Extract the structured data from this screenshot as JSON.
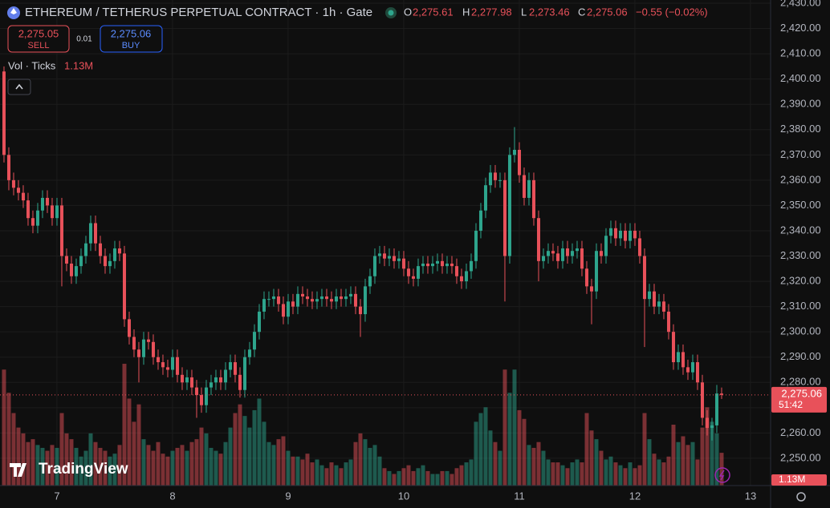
{
  "header": {
    "title": "ETHEREUM / TETHERUS PERPETUAL CONTRACT · 1h · Gate",
    "o": "O",
    "o_value": "2,275.61",
    "h": "H",
    "h_value": "2,277.98",
    "l": "L",
    "l_value": "2,273.46",
    "c": "C",
    "c_value": "2,275.06",
    "change": "−0.55 (−0.02%)",
    "sell_price": "2,275.05",
    "sell": "SELL",
    "spread": "0.01",
    "buy_price": "2,275.06",
    "buy": "BUY",
    "volume_legend": "Vol · Ticks",
    "volume_legend_value": "1.13M",
    "logo": "TradingView"
  },
  "price_tag": {
    "price": "2,275.06",
    "countdown": "51:42"
  },
  "volume_tag": "1.13M",
  "chart_data": {
    "type": "candlestick",
    "up_color": "#2ea58d",
    "down_color": "#e8515a",
    "grid": true,
    "x": [
      -11,
      -10,
      -9,
      -8,
      -7,
      -6,
      -5,
      -4,
      -3,
      -2,
      -1,
      0,
      1,
      2,
      3,
      4,
      5,
      6,
      7,
      8,
      9,
      10,
      11,
      12,
      13,
      14,
      15,
      16,
      17,
      18,
      19,
      20,
      21,
      22,
      23,
      24,
      25,
      26,
      27,
      28,
      29,
      30,
      31,
      32,
      33,
      34,
      35,
      36,
      37,
      38,
      39,
      40,
      41,
      42,
      43,
      44,
      45,
      46,
      47,
      48,
      49,
      50,
      51,
      52,
      53,
      54,
      55,
      56,
      57,
      58,
      59,
      60,
      61,
      62,
      63,
      64,
      65,
      66,
      67,
      68,
      69,
      70,
      71,
      72,
      73,
      74,
      75,
      76,
      77,
      78,
      79,
      80,
      81,
      82,
      83,
      84,
      85,
      86,
      87,
      88,
      89,
      90,
      91,
      92,
      93,
      94,
      95,
      96,
      97,
      98,
      99,
      100,
      101,
      102,
      103,
      104,
      105,
      106,
      107,
      108,
      109,
      110,
      111,
      112,
      113,
      114,
      115,
      116,
      117,
      118,
      119,
      120,
      121,
      122,
      123,
      124,
      125,
      126,
      127,
      128,
      129,
      130,
      131,
      132,
      133,
      134,
      135,
      136,
      137,
      138
    ],
    "open": [
      2403,
      2370,
      2360,
      2357,
      2355,
      2352,
      2345,
      2342,
      2348,
      2353,
      2350,
      2345,
      2350,
      2330,
      2327,
      2322,
      2326,
      2330,
      2335,
      2343,
      2335,
      2330,
      2326,
      2328,
      2333,
      2331,
      2305,
      2298,
      2293,
      2290,
      2297,
      2296,
      2290,
      2288,
      2286,
      2285,
      2290,
      2283,
      2280,
      2282,
      2278,
      2275,
      2271,
      2278,
      2280,
      2282,
      2280,
      2285,
      2288,
      2283,
      2277,
      2290,
      2293,
      2300,
      2308,
      2313,
      2313,
      2314,
      2311,
      2306,
      2312,
      2310,
      2315,
      2314,
      2313,
      2312,
      2313,
      2314,
      2313,
      2312,
      2314,
      2313,
      2314,
      2315,
      2310,
      2307,
      2318,
      2322,
      2330,
      2331,
      2329,
      2330,
      2328,
      2329,
      2325,
      2322,
      2321,
      2326,
      2327,
      2326,
      2327,
      2328,
      2326,
      2327,
      2326,
      2322,
      2320,
      2324,
      2328,
      2340,
      2348,
      2358,
      2363,
      2360,
      2360,
      2330,
      2370,
      2372,
      2362,
      2353,
      2360,
      2345,
      2328,
      2330,
      2332,
      2331,
      2328,
      2333,
      2330,
      2332,
      2333,
      2325,
      2318,
      2316,
      2332,
      2330,
      2338,
      2341,
      2337,
      2340,
      2336,
      2340,
      2337,
      2330,
      2313,
      2316,
      2310,
      2312,
      2308,
      2300,
      2288,
      2292,
      2286,
      2284,
      2288,
      2280,
      2266,
      2262,
      2263,
      2275.61
    ],
    "high": [
      2405,
      2373,
      2363,
      2360,
      2358,
      2355,
      2348,
      2351,
      2356,
      2356,
      2353,
      2353,
      2353,
      2333,
      2330,
      2329,
      2333,
      2338,
      2346,
      2346,
      2338,
      2333,
      2331,
      2336,
      2336,
      2334,
      2308,
      2301,
      2296,
      2300,
      2300,
      2299,
      2293,
      2291,
      2289,
      2293,
      2293,
      2286,
      2285,
      2285,
      2281,
      2278,
      2281,
      2283,
      2285,
      2285,
      2288,
      2291,
      2291,
      2286,
      2293,
      2296,
      2303,
      2311,
      2316,
      2316,
      2317,
      2317,
      2314,
      2315,
      2315,
      2318,
      2318,
      2317,
      2316,
      2316,
      2317,
      2317,
      2316,
      2317,
      2317,
      2317,
      2318,
      2318,
      2313,
      2321,
      2325,
      2333,
      2334,
      2334,
      2333,
      2333,
      2332,
      2332,
      2328,
      2325,
      2329,
      2330,
      2330,
      2330,
      2331,
      2331,
      2330,
      2330,
      2329,
      2325,
      2327,
      2331,
      2343,
      2351,
      2361,
      2366,
      2366,
      2363,
      2363,
      2373,
      2381,
      2375,
      2365,
      2363,
      2363,
      2348,
      2333,
      2335,
      2335,
      2334,
      2336,
      2336,
      2335,
      2336,
      2336,
      2328,
      2321,
      2335,
      2335,
      2341,
      2344,
      2344,
      2343,
      2343,
      2343,
      2343,
      2340,
      2333,
      2319,
      2319,
      2315,
      2315,
      2311,
      2303,
      2295,
      2295,
      2289,
      2291,
      2291,
      2283,
      2269,
      2266,
      2279,
      2277.98
    ],
    "low": [
      2367,
      2356,
      2354,
      2352,
      2349,
      2342,
      2339,
      2339,
      2345,
      2347,
      2342,
      2342,
      2318,
      2324,
      2319,
      2319,
      2323,
      2327,
      2332,
      2332,
      2327,
      2323,
      2323,
      2325,
      2328,
      2302,
      2295,
      2290,
      2280,
      2287,
      2293,
      2287,
      2285,
      2283,
      2282,
      2282,
      2280,
      2277,
      2277,
      2275,
      2266,
      2268,
      2268,
      2275,
      2277,
      2277,
      2277,
      2282,
      2280,
      2274,
      2274,
      2287,
      2290,
      2297,
      2305,
      2310,
      2310,
      2308,
      2303,
      2303,
      2307,
      2307,
      2311,
      2310,
      2309,
      2309,
      2310,
      2310,
      2309,
      2309,
      2310,
      2310,
      2311,
      2307,
      2298,
      2304,
      2315,
      2319,
      2327,
      2326,
      2326,
      2325,
      2325,
      2322,
      2319,
      2318,
      2318,
      2323,
      2323,
      2323,
      2324,
      2323,
      2323,
      2323,
      2319,
      2317,
      2317,
      2321,
      2325,
      2337,
      2345,
      2355,
      2357,
      2357,
      2312,
      2327,
      2367,
      2359,
      2350,
      2350,
      2342,
      2320,
      2325,
      2327,
      2328,
      2325,
      2325,
      2327,
      2327,
      2329,
      2322,
      2315,
      2303,
      2313,
      2327,
      2327,
      2335,
      2334,
      2334,
      2333,
      2333,
      2334,
      2327,
      2294,
      2310,
      2307,
      2307,
      2305,
      2297,
      2285,
      2285,
      2283,
      2281,
      2281,
      2277,
      2263,
      2259,
      2257,
      2260,
      2273.46
    ],
    "close": [
      2370,
      2360,
      2357,
      2355,
      2352,
      2345,
      2342,
      2348,
      2353,
      2350,
      2345,
      2350,
      2330,
      2327,
      2322,
      2326,
      2330,
      2335,
      2343,
      2335,
      2330,
      2326,
      2328,
      2333,
      2331,
      2305,
      2298,
      2293,
      2290,
      2297,
      2296,
      2290,
      2288,
      2286,
      2285,
      2290,
      2283,
      2280,
      2282,
      2278,
      2275,
      2271,
      2278,
      2280,
      2282,
      2280,
      2285,
      2288,
      2283,
      2277,
      2290,
      2293,
      2300,
      2308,
      2313,
      2313,
      2314,
      2311,
      2306,
      2312,
      2310,
      2315,
      2314,
      2313,
      2312,
      2313,
      2314,
      2313,
      2312,
      2314,
      2313,
      2314,
      2315,
      2310,
      2307,
      2318,
      2322,
      2330,
      2331,
      2329,
      2330,
      2328,
      2329,
      2325,
      2322,
      2321,
      2326,
      2327,
      2326,
      2327,
      2328,
      2326,
      2327,
      2326,
      2322,
      2320,
      2324,
      2328,
      2340,
      2348,
      2358,
      2363,
      2360,
      2360,
      2330,
      2370,
      2372,
      2362,
      2353,
      2360,
      2345,
      2328,
      2330,
      2332,
      2331,
      2328,
      2333,
      2330,
      2332,
      2333,
      2325,
      2318,
      2316,
      2332,
      2330,
      2338,
      2341,
      2337,
      2340,
      2336,
      2340,
      2337,
      2330,
      2313,
      2316,
      2310,
      2312,
      2308,
      2300,
      2288,
      2292,
      2286,
      2284,
      2288,
      2280,
      2266,
      2262,
      2263,
      2275.61,
      2275.06
    ],
    "volume": [
      4.0,
      3.2,
      2.5,
      2.0,
      1.8,
      1.5,
      1.6,
      1.4,
      1.3,
      1.2,
      1.4,
      1.3,
      2.5,
      1.8,
      1.6,
      1.3,
      1.0,
      1.2,
      1.8,
      1.5,
      1.3,
      1.2,
      1.0,
      1.1,
      1.4,
      4.2,
      3.0,
      2.2,
      2.8,
      1.6,
      1.4,
      1.2,
      1.5,
      1.1,
      1.0,
      1.2,
      1.3,
      1.4,
      1.2,
      1.5,
      1.6,
      2.0,
      1.8,
      1.3,
      1.2,
      1.1,
      1.5,
      2.0,
      2.5,
      2.8,
      2.4,
      2.0,
      2.6,
      3.0,
      2.2,
      1.5,
      1.4,
      1.6,
      1.7,
      1.2,
      1.0,
      1.0,
      0.9,
      1.1,
      0.8,
      0.9,
      0.7,
      0.6,
      0.8,
      0.7,
      0.6,
      0.8,
      0.9,
      1.5,
      1.8,
      1.6,
      1.3,
      1.4,
      1.0,
      0.6,
      0.5,
      0.4,
      0.5,
      0.6,
      0.7,
      0.5,
      0.6,
      0.7,
      0.5,
      0.4,
      0.4,
      0.5,
      0.5,
      0.4,
      0.6,
      0.7,
      0.8,
      0.9,
      2.2,
      2.5,
      2.7,
      1.9,
      1.5,
      1.2,
      4.0,
      3.2,
      4.0,
      2.6,
      2.3,
      1.4,
      1.3,
      1.5,
      1.2,
      0.9,
      0.8,
      0.8,
      0.7,
      0.6,
      0.8,
      0.9,
      0.8,
      2.5,
      1.9,
      1.6,
      1.2,
      0.9,
      1.0,
      0.8,
      0.7,
      0.6,
      0.8,
      0.6,
      0.7,
      2.5,
      1.6,
      1.1,
      0.9,
      0.8,
      1.0,
      2.1,
      1.5,
      1.7,
      1.4,
      1.5,
      0.9,
      2.0,
      2.7,
      2.2,
      1.8,
      1.13
    ],
    "xlim": [
      -11.83,
      148.17
    ],
    "xticks": [
      {
        "value": 0,
        "label": "7"
      },
      {
        "value": 24,
        "label": "8"
      },
      {
        "value": 48,
        "label": "9"
      },
      {
        "value": 72,
        "label": "10"
      },
      {
        "value": 96,
        "label": "11"
      },
      {
        "value": 120,
        "label": "12"
      },
      {
        "value": 144,
        "label": "13"
      }
    ],
    "ylim": [
      2239.2,
      2431.27
    ],
    "yticks": [
      {
        "value": 2250,
        "label": "2,250.00"
      },
      {
        "value": 2260,
        "label": "2,260.00"
      },
      {
        "value": 2270,
        "label": "2,270.00"
      },
      {
        "value": 2280,
        "label": "2,280.00"
      },
      {
        "value": 2290,
        "label": "2,290.00"
      },
      {
        "value": 2300,
        "label": "2,300.00"
      },
      {
        "value": 2310,
        "label": "2,310.00"
      },
      {
        "value": 2320,
        "label": "2,320.00"
      },
      {
        "value": 2330,
        "label": "2,330.00"
      },
      {
        "value": 2340,
        "label": "2,340.00"
      },
      {
        "value": 2350,
        "label": "2,350.00"
      },
      {
        "value": 2360,
        "label": "2,360.00"
      },
      {
        "value": 2370,
        "label": "2,370.00"
      },
      {
        "value": 2380,
        "label": "2,380.00"
      },
      {
        "value": 2390,
        "label": "2,390.00"
      },
      {
        "value": 2400,
        "label": "2,400.00"
      },
      {
        "value": 2410,
        "label": "2,410.00"
      },
      {
        "value": 2420,
        "label": "2,420.00"
      },
      {
        "value": 2430,
        "label": "2,430.00"
      }
    ]
  }
}
